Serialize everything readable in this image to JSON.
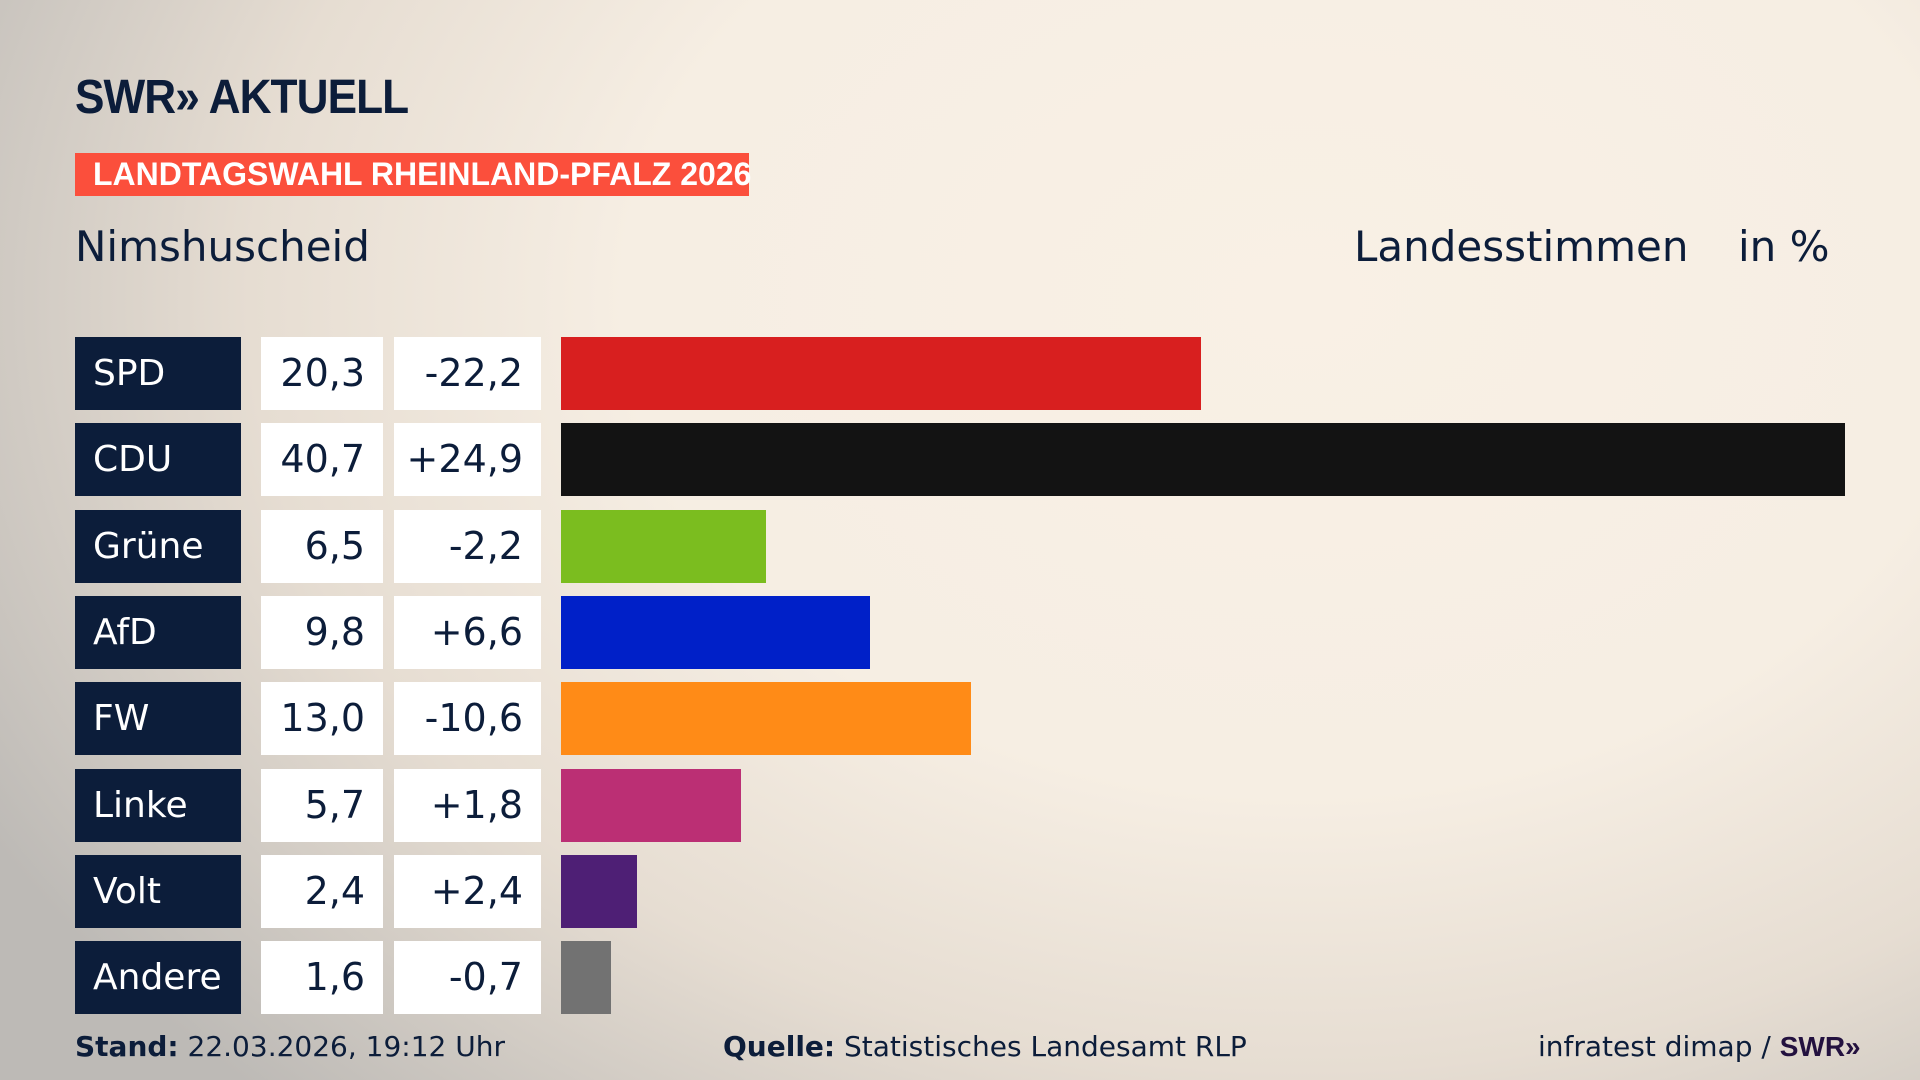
{
  "header": {
    "logo": "SWR» AKTUELL",
    "banner": "LANDTAGSWAHL RHEINLAND-PFALZ 2026",
    "place": "Nimshuscheid",
    "vote_type": "Landesstimmen",
    "unit": "in %"
  },
  "chart_data": {
    "type": "bar",
    "orientation": "horizontal",
    "xlim": [
      0,
      40.7
    ],
    "categories": [
      "SPD",
      "CDU",
      "Grüne",
      "AfD",
      "FW",
      "Linke",
      "Volt",
      "Andere"
    ],
    "values": [
      "20,3",
      "40,7",
      "6,5",
      "9,8",
      "13,0",
      "5,7",
      "2,4",
      "1,6"
    ],
    "diffs": [
      "-22,2",
      "+24,9",
      "-2,2",
      "+6,6",
      "-10,6",
      "+1,8",
      "+2,4",
      "-0,7"
    ],
    "numeric": [
      20.3,
      40.7,
      6.5,
      9.8,
      13.0,
      5.7,
      2.4,
      1.6
    ],
    "colors": [
      "#d81f1f",
      "#131313",
      "#7bbd1f",
      "#0020c8",
      "#ff8b17",
      "#bb2f74",
      "#4e1f75",
      "#727272"
    ]
  },
  "footer": {
    "stand_label": "Stand:",
    "stand": "22.03.2026, 19:12 Uhr",
    "source_label": "Quelle:",
    "source": "Statistisches Landesamt RLP",
    "credit": "infratest dimap /",
    "credit_logo": "SWR»"
  }
}
